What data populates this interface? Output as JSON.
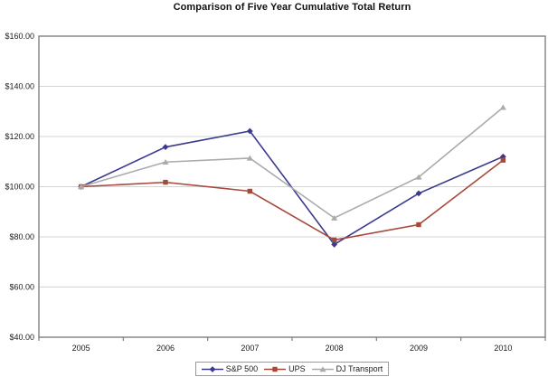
{
  "window": {
    "background": "#FFFFFF"
  },
  "chart_data": {
    "type": "line",
    "title": "Comparison of Five Year Cumulative Total Return",
    "categories": [
      "2005",
      "2006",
      "2007",
      "2008",
      "2009",
      "2010"
    ],
    "series": [
      {
        "name": "S&P 500",
        "marker": "diamond",
        "color": "#3B3B8E",
        "values": [
          100.0,
          115.8,
          122.16,
          76.96,
          97.33,
          111.99
        ]
      },
      {
        "name": "UPS",
        "marker": "square",
        "color": "#A6493B",
        "values": [
          100.0,
          101.76,
          98.2,
          78.76,
          84.87,
          110.57
        ]
      },
      {
        "name": "DJ Transport",
        "marker": "triangle",
        "color": "#ABABAB",
        "values": [
          100.0,
          109.82,
          111.38,
          87.52,
          103.79,
          131.59
        ]
      }
    ],
    "ylim": [
      40,
      160
    ],
    "ytick_step": 20,
    "ytick_labels": [
      "$40.00",
      "$60.00",
      "$80.00",
      "$100.00",
      "$120.00",
      "$140.00",
      "$160.00"
    ],
    "xlabel": "",
    "ylabel": "",
    "grid": true,
    "legend_position": "bottom",
    "axis_color": "#7F7F7F",
    "gridline_color": "#D4D4D4",
    "text_color": "#1A1A1A"
  }
}
